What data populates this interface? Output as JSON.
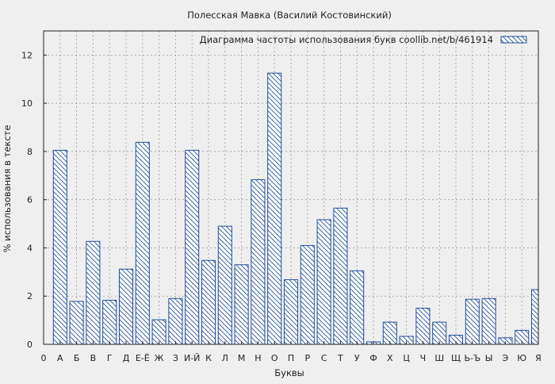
{
  "chart_data": {
    "type": "bar",
    "title": "Полесская Мавка (Василий Костовинский)",
    "xlabel": "Буквы",
    "ylabel": "% использования в тексте",
    "legend": {
      "label": "Диаграмма частоты использования букв  coollib.net/b/461914",
      "position": "top-right"
    },
    "grid": true,
    "ylim": [
      0,
      13
    ],
    "yticks": [
      0,
      2,
      4,
      6,
      8,
      10,
      12
    ],
    "x_axis_origin_label": "0",
    "categories": [
      "А",
      "Б",
      "В",
      "Г",
      "Д",
      "Е-Ё",
      "Ж",
      "З",
      "И-Й",
      "К",
      "Л",
      "М",
      "Н",
      "О",
      "П",
      "Р",
      "С",
      "Т",
      "У",
      "Ф",
      "Х",
      "Ц",
      "Ч",
      "Ш",
      "Щ",
      "Ь-Ъ",
      "Ы",
      "Э",
      "Ю",
      "Я"
    ],
    "values": [
      8.05,
      1.78,
      4.27,
      1.83,
      3.12,
      8.38,
      1.02,
      1.9,
      8.05,
      3.48,
      4.9,
      3.3,
      6.83,
      11.25,
      2.68,
      4.1,
      5.17,
      5.65,
      3.05,
      0.1,
      0.92,
      0.33,
      1.5,
      0.92,
      0.38,
      1.87,
      1.9,
      0.27,
      0.58,
      2.27
    ],
    "colors": {
      "bar_stroke": "#1f4e9c",
      "hatch": "#1f4e9c",
      "bar_fill": "#ffffff",
      "plot_bg": "#efefef",
      "grid": "#9a9a9a"
    }
  }
}
